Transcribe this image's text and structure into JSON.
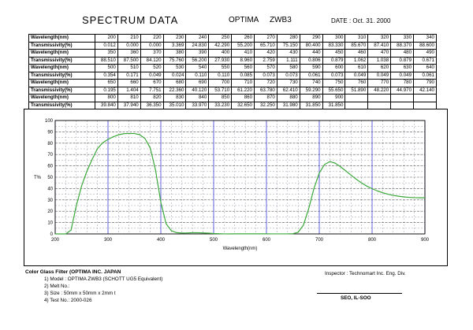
{
  "header": {
    "title": "SPECTRUM   DATA",
    "product": "OPTIMA",
    "model": "ZWB3",
    "date": "DATE :  Oct. 31. 2000"
  },
  "table": {
    "rows": [
      {
        "label": "Wavelength(nm)",
        "values": [
          "200",
          "210",
          "220",
          "230",
          "240",
          "250",
          "260",
          "270",
          "280",
          "290",
          "300",
          "310",
          "320",
          "330",
          "340"
        ]
      },
      {
        "label": "Transmissivity(%)",
        "values": [
          "0.012",
          "0.000",
          "0.000",
          "3.369",
          "24.830",
          "42.290",
          "55.200",
          "65.710",
          "75.150",
          "80.400",
          "83.330",
          "85.670",
          "87.410",
          "88.370",
          "88.600"
        ]
      },
      {
        "label": "Wavelength(nm)",
        "values": [
          "350",
          "360",
          "370",
          "380",
          "390",
          "400",
          "410",
          "420",
          "430",
          "440",
          "450",
          "460",
          "470",
          "480",
          "490"
        ]
      },
      {
        "label": "Transmissivity(%)",
        "values": [
          "88.510",
          "87.500",
          "84.120",
          "75.760",
          "56.200",
          "27.930",
          "8.960",
          "2.759",
          "1.111",
          "0.806",
          "0.879",
          "1.062",
          "1.038",
          "0.879",
          "0.671"
        ]
      },
      {
        "label": "Wavelength(nm)",
        "values": [
          "500",
          "510",
          "520",
          "530",
          "540",
          "550",
          "560",
          "570",
          "580",
          "590",
          "600",
          "610",
          "620",
          "630",
          "640"
        ]
      },
      {
        "label": "Transmissivity(%)",
        "values": [
          "0.354",
          "0.171",
          "0.049",
          "0.024",
          "0.110",
          "0.110",
          "0.085",
          "0.073",
          "0.073",
          "0.061",
          "0.073",
          "0.049",
          "0.049",
          "0.049",
          "0.061"
        ]
      },
      {
        "label": "Wavelength(nm)",
        "values": [
          "650",
          "660",
          "670",
          "680",
          "690",
          "700",
          "710",
          "720",
          "730",
          "740",
          "750",
          "760",
          "770",
          "780",
          "790"
        ]
      },
      {
        "label": "Transmissivity(%)",
        "values": [
          "0.195",
          "1.404",
          "7.751",
          "22.360",
          "40.120",
          "53.710",
          "61.220",
          "63.780",
          "62.410",
          "59.290",
          "55.650",
          "51.890",
          "48.220",
          "44.970",
          "42.140"
        ]
      },
      {
        "label": "Wavelength(nm)",
        "values": [
          "800",
          "810",
          "820",
          "830",
          "840",
          "850",
          "860",
          "870",
          "880",
          "890",
          "900",
          "",
          "",
          "",
          ""
        ]
      },
      {
        "label": "Transmissivity(%)",
        "values": [
          "39.840",
          "37.940",
          "36.350",
          "35.010",
          "33.970",
          "33.230",
          "32.650",
          "32.250",
          "31.980",
          "31.850",
          "31.850",
          "",
          "",
          "",
          ""
        ]
      }
    ]
  },
  "chart_data": {
    "type": "line",
    "xlabel": "Wavelength(nm)",
    "ylabel": "T%",
    "xlim": [
      200,
      900
    ],
    "ylim": [
      0,
      100
    ],
    "x_ticks": [
      200,
      300,
      400,
      500,
      600,
      700,
      800,
      900
    ],
    "y_ticks": [
      0,
      10,
      20,
      30,
      40,
      50,
      60,
      70,
      80,
      90,
      100
    ],
    "grid": true,
    "line_color": "#3aa83a",
    "grid_color": "#3b3bd6",
    "series": [
      {
        "x": [
          200,
          210,
          220,
          230,
          240,
          250,
          260,
          270,
          280,
          290,
          300,
          310,
          320,
          330,
          340,
          350,
          360,
          370,
          380,
          390,
          400,
          410,
          420,
          430,
          440,
          450,
          460,
          470,
          480,
          490,
          500,
          510,
          520,
          530,
          540,
          550,
          560,
          570,
          580,
          590,
          600,
          610,
          620,
          630,
          640,
          650,
          660,
          670,
          680,
          690,
          700,
          710,
          720,
          730,
          740,
          750,
          760,
          770,
          780,
          790,
          800,
          810,
          820,
          830,
          840,
          850,
          860,
          870,
          880,
          890,
          900
        ],
        "y": [
          0.012,
          0.0,
          0.0,
          3.369,
          24.83,
          42.29,
          55.2,
          65.71,
          75.15,
          80.4,
          83.33,
          85.67,
          87.41,
          88.37,
          88.6,
          88.51,
          87.5,
          84.12,
          75.76,
          56.2,
          27.93,
          8.96,
          2.759,
          1.111,
          0.806,
          0.879,
          1.062,
          1.038,
          0.879,
          0.671,
          0.354,
          0.171,
          0.049,
          0.024,
          0.11,
          0.11,
          0.085,
          0.073,
          0.073,
          0.061,
          0.073,
          0.049,
          0.049,
          0.049,
          0.061,
          0.195,
          1.404,
          7.751,
          22.36,
          40.12,
          53.71,
          61.22,
          63.78,
          62.41,
          59.29,
          55.65,
          51.89,
          48.22,
          44.97,
          42.14,
          39.84,
          37.94,
          36.35,
          35.01,
          33.97,
          33.23,
          32.65,
          32.25,
          31.98,
          31.85,
          31.85
        ]
      }
    ]
  },
  "footer": {
    "title": "Color Glass Filter (OPTIMA INC. JAPAN",
    "line1": "1)  Model :  OPTIMA      ZWB3     (SCHOTT UG5 Equivalent)",
    "line2": "2) Melt No.:",
    "line3": "3) Size :  50mm x 50mm x 2mm t",
    "line4": "4) Test No.:   2000-026",
    "inspector": "Inspector : Technomart Inc. Eng. Div.",
    "signature": "SEO, IL-SOO"
  }
}
